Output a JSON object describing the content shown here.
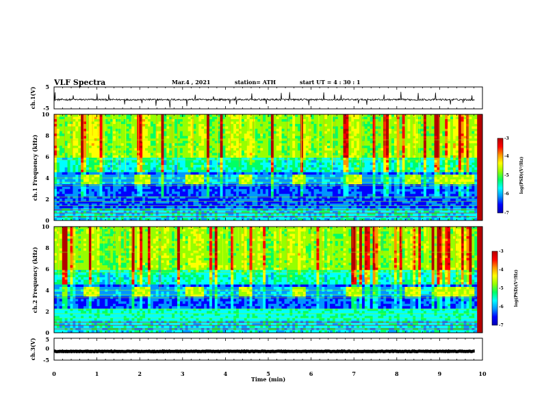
{
  "header": {
    "title": "VLF Spectra",
    "date": "Mar.4 , 2021",
    "station": "station= ATH",
    "start": "start UT = 4 : 30 : 1"
  },
  "colors": {
    "trace": "#000000",
    "spectrogram_scale": [
      "#0000b4",
      "#0000ff",
      "#0096ff",
      "#00ffff",
      "#00ff64",
      "#96ff00",
      "#ffff00",
      "#ff9600",
      "#ff0000",
      "#b40000"
    ]
  },
  "chart_data": [
    {
      "type": "line",
      "name": "ch1-waveform",
      "ylabel": "ch.1(V)",
      "ylim": [
        -5,
        5
      ],
      "yticks": [
        "5",
        "-5"
      ],
      "xlim": [
        0,
        10
      ],
      "baseline": -0.8,
      "noise_amplitude": 0.4,
      "spike_times": [
        0.02,
        0.45,
        1.0,
        1.28,
        1.65,
        2.05,
        2.38,
        2.7,
        3.1,
        3.3,
        3.72,
        4.1,
        4.25,
        4.62,
        4.95,
        5.3,
        5.5,
        5.95,
        6.3,
        6.55,
        6.7,
        7.1,
        7.3,
        7.7,
        8.1,
        8.5,
        8.9,
        9.25,
        9.55,
        9.75
      ]
    },
    {
      "type": "heatmap",
      "name": "ch1-spectrogram",
      "ylabel": "ch.1 Frequency (kHz)",
      "ylim": [
        0,
        10
      ],
      "yticks": [
        "0",
        "2",
        "4",
        "6",
        "8",
        "10"
      ],
      "xlim": [
        0,
        10
      ],
      "colorbar": {
        "label": "log(PSD)(V²/Hz)",
        "range": [
          -7,
          -3
        ],
        "ticks": [
          "-3",
          "-4",
          "-5",
          "-6",
          "-7"
        ]
      },
      "tone_bursts_min": [
        [
          0.7,
          1.08
        ],
        [
          1.85,
          2.25
        ],
        [
          3.05,
          3.5
        ],
        [
          4.3,
          4.65
        ],
        [
          5.55,
          5.9
        ],
        [
          6.8,
          7.2
        ],
        [
          8.2,
          8.55
        ],
        [
          8.9,
          9.8
        ]
      ],
      "tone_band_khz": [
        3.5,
        4.3
      ]
    },
    {
      "type": "heatmap",
      "name": "ch2-spectrogram",
      "ylabel": "ch.2 Frequency (kHz)",
      "ylim": [
        0,
        10
      ],
      "yticks": [
        "0",
        "2",
        "4",
        "6",
        "8",
        "10"
      ],
      "xlim": [
        0,
        10
      ],
      "colorbar": {
        "label": "log(PSD)(V²/Hz)",
        "range": [
          -7,
          -3
        ],
        "ticks": [
          "-3",
          "-4",
          "-5",
          "-6",
          "-7"
        ]
      },
      "tone_bursts_min": [
        [
          0.7,
          1.08
        ],
        [
          1.85,
          2.25
        ],
        [
          3.05,
          3.5
        ],
        [
          4.3,
          4.65
        ],
        [
          5.55,
          5.9
        ],
        [
          6.8,
          7.2
        ],
        [
          8.2,
          8.55
        ],
        [
          8.9,
          9.8
        ]
      ],
      "tone_band_khz": [
        3.5,
        4.3
      ]
    },
    {
      "type": "line",
      "name": "ch3-waveform",
      "ylabel": "ch.3(V)",
      "ylim": [
        -5,
        5
      ],
      "yticks": [
        "5",
        "0",
        "-5"
      ],
      "xlim": [
        0,
        10
      ],
      "xlabel": "Time (min)",
      "xticks": [
        "0",
        "1",
        "2",
        "3",
        "4",
        "5",
        "6",
        "7",
        "8",
        "9",
        "10"
      ],
      "baseline": -1,
      "noise_amplitude": 0.5,
      "x_end": 9.82
    }
  ]
}
